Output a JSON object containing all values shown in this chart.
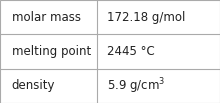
{
  "rows": [
    {
      "label": "molar mass",
      "value": "172.18 g/mol",
      "superscript": null
    },
    {
      "label": "melting point",
      "value": "2445 °C",
      "superscript": null
    },
    {
      "label": "density",
      "value": "5.9 g/cm",
      "superscript": "3"
    }
  ],
  "background_color": "#ffffff",
  "border_color": "#aaaaaa",
  "text_color": "#222222",
  "font_size": 8.5,
  "col_split": 0.44,
  "figsize": [
    2.2,
    1.03
  ],
  "dpi": 100
}
